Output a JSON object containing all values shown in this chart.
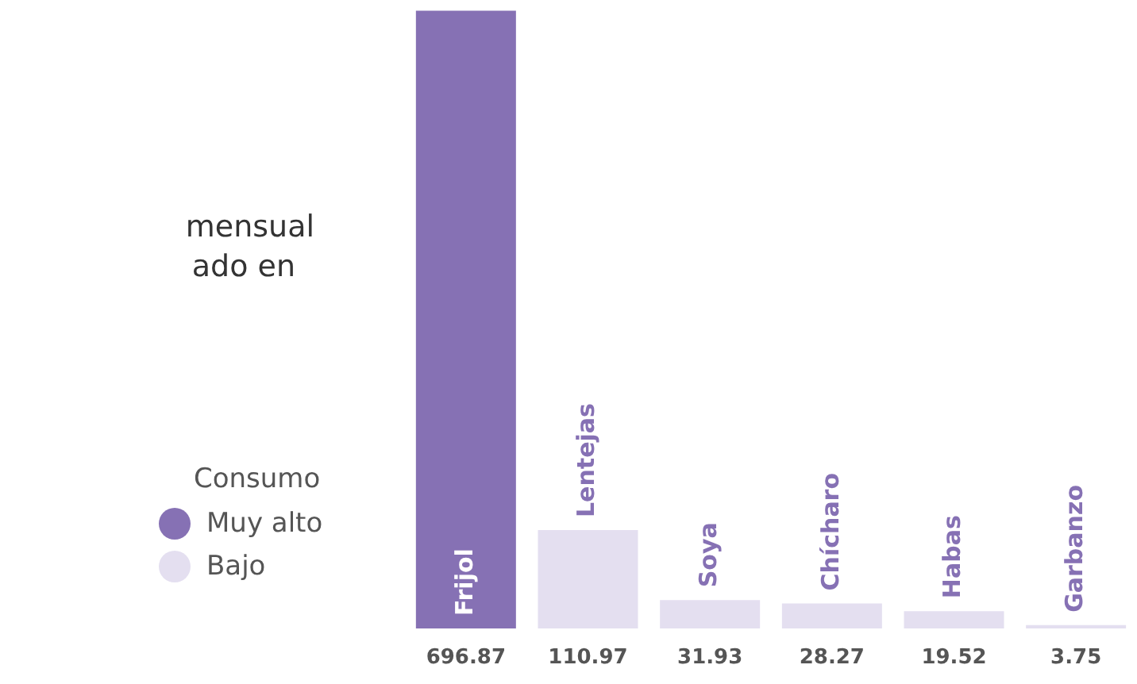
{
  "chart_data": {
    "type": "bar",
    "categories": [
      "Frijol",
      "Lentejas",
      "Soya",
      "Chícharo",
      "Habas",
      "Garbanzo"
    ],
    "series": [
      {
        "name": "Muy alto",
        "color": "#8671b4",
        "values": [
          696.87,
          null,
          null,
          null,
          null,
          null
        ]
      },
      {
        "name": "Bajo",
        "color": "#e4dff0",
        "values": [
          null,
          110.97,
          31.93,
          28.27,
          19.52,
          3.75
        ]
      }
    ],
    "stacked": true,
    "data_labels": true,
    "legend": "left",
    "legend_title": "Consumo",
    "grid": false,
    "annotations": [
      "mensual",
      "ado en"
    ]
  }
}
